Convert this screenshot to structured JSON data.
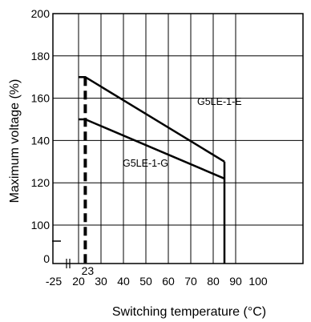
{
  "chart_data": {
    "type": "line",
    "title": "",
    "xlabel": "Switching temperature (°C)",
    "ylabel": "Maximum voltage (%)",
    "x_tick_labels": [
      "-25",
      "20",
      "30",
      "40",
      "50",
      "60",
      "70",
      "80",
      "90",
      "100"
    ],
    "x_marker_label": "23",
    "y_tick_labels": [
      "0",
      "100",
      "120",
      "140",
      "160",
      "180",
      "200"
    ],
    "x_axis_break": true,
    "y_axis_break": true,
    "grid": true,
    "xlim": [
      -25,
      100
    ],
    "ylim": [
      0,
      200
    ],
    "marker_x": 23,
    "series": [
      {
        "name": "G5LE-1-E",
        "x": [
          23,
          85
        ],
        "y": [
          170,
          130
        ]
      },
      {
        "name": "G5LE-1-G",
        "x": [
          23,
          85
        ],
        "y": [
          150,
          122
        ]
      }
    ],
    "lower_boundary": {
      "x": [
        20,
        23,
        85
      ],
      "y": [
        170,
        170,
        0
      ]
    }
  }
}
